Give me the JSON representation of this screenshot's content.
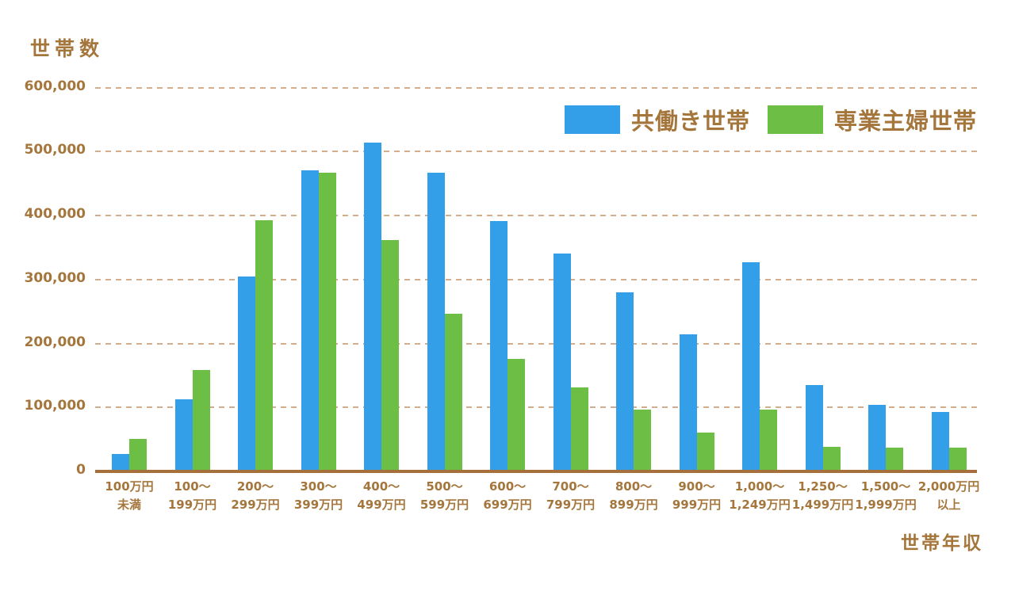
{
  "axis_titles": {
    "y": "世帯数",
    "x": "世帯年収"
  },
  "styles": {
    "background": "#FFFFFF",
    "text_color": "#A5763C",
    "axis_line_color": "#A5703C",
    "gridline_color": "#D4AD8D",
    "dual_income_color": "#329FE8",
    "single_income_color": "#6CBE44"
  },
  "chart_data": {
    "type": "bar",
    "title": "",
    "ylabel": "世帯数",
    "xlabel": "世帯年収",
    "ylim": [
      0,
      600000
    ],
    "yticks": [
      0,
      100000,
      200000,
      300000,
      400000,
      500000,
      600000
    ],
    "ytick_labels": [
      "0",
      "100,000",
      "200,000",
      "300,000",
      "400,000",
      "500,000",
      "600,000"
    ],
    "grid": "horizontal-dashed",
    "legend_position": "top-right",
    "categories": [
      [
        "100万円",
        "未満"
      ],
      [
        "100〜",
        "199万円"
      ],
      [
        "200〜",
        "299万円"
      ],
      [
        "300〜",
        "399万円"
      ],
      [
        "400〜",
        "499万円"
      ],
      [
        "500〜",
        "599万円"
      ],
      [
        "600〜",
        "699万円"
      ],
      [
        "700〜",
        "799万円"
      ],
      [
        "800〜",
        "899万円"
      ],
      [
        "900〜",
        "999万円"
      ],
      [
        "1,000〜",
        "1,249万円"
      ],
      [
        "1,250〜",
        "1,499万円"
      ],
      [
        "1,500〜",
        "1,999万円"
      ],
      [
        "2,000万円",
        "以上"
      ]
    ],
    "series": [
      {
        "name": "共働き世帯",
        "color": "#329FE8",
        "values": [
          27000,
          113000,
          305000,
          470000,
          514000,
          467000,
          391000,
          340000,
          280000,
          214000,
          327000,
          135000,
          104000,
          93000
        ]
      },
      {
        "name": "専業主婦世帯",
        "color": "#6CBE44",
        "values": [
          51000,
          158000,
          392000,
          467000,
          362000,
          246000,
          176000,
          131000,
          97000,
          61000,
          97000,
          38000,
          37000,
          37000
        ]
      }
    ]
  }
}
